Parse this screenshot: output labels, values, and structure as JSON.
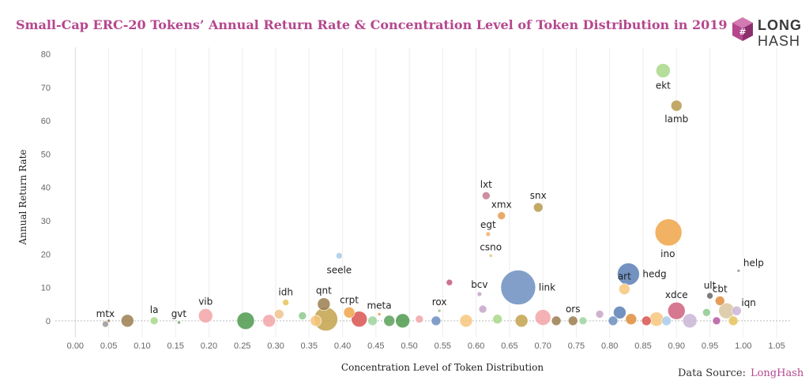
{
  "title": "Small-Cap ERC-20 Tokens’ Annual Return Rate & Concentration Level of Token Distribution in 2019",
  "logo": {
    "line1": "LONG",
    "line2": "HASH",
    "brand_color": "#b5478e"
  },
  "source": {
    "prefix": "Data Source:",
    "name": "LongHash"
  },
  "chart_data": {
    "type": "scatter",
    "title": "Small-Cap ERC-20 Tokens’ Annual Return Rate & Concentration Level of Token Distribution in 2019",
    "xlabel": "Concentration Level of Token Distribution",
    "ylabel": "Annual Return Rate",
    "xlim": [
      -0.03,
      1.07
    ],
    "ylim": [
      -5,
      82
    ],
    "xticks": [
      "0.00",
      "0.05",
      "0.10",
      "0.15",
      "0.20",
      "0.25",
      "0.30",
      "0.35",
      "0.40",
      "0.45",
      "0.50",
      "0.55",
      "0.60",
      "0.65",
      "0.70",
      "0.75",
      "0.80",
      "0.85",
      "0.90",
      "0.95",
      "1.00",
      "1.05"
    ],
    "yticks": [
      "0",
      "10",
      "20",
      "30",
      "40",
      "50",
      "60",
      "70",
      "80"
    ],
    "grid": "vertical gridlines, dashed zero line",
    "labeled_points": [
      {
        "label": "ekt",
        "x": 0.88,
        "y": 75.0,
        "r": 9,
        "color": "#a8d88a"
      },
      {
        "label": "lamb",
        "x": 0.9,
        "y": 64.5,
        "r": 7,
        "color": "#b89a4e"
      },
      {
        "label": "ino",
        "x": 0.888,
        "y": 26.5,
        "r": 17,
        "color": "#f0a548"
      },
      {
        "label": "lxt",
        "x": 0.615,
        "y": 37.5,
        "r": 5,
        "color": "#c47a8f"
      },
      {
        "label": "xmx",
        "x": 0.638,
        "y": 31.5,
        "r": 5,
        "color": "#e59b4f"
      },
      {
        "label": "snx",
        "x": 0.693,
        "y": 34.0,
        "r": 6,
        "color": "#b89a4e"
      },
      {
        "label": "egt",
        "x": 0.618,
        "y": 26.0,
        "r": 3,
        "color": "#f2b36b"
      },
      {
        "label": "csno",
        "x": 0.622,
        "y": 19.5,
        "r": 2,
        "color": "#e5c07b"
      },
      {
        "label": "seele",
        "x": 0.395,
        "y": 19.5,
        "r": 4,
        "color": "#a9cbe8"
      },
      {
        "label": "link",
        "x": 0.663,
        "y": 10.0,
        "r": 22,
        "color": "#6c8ebf"
      },
      {
        "label": "hedg",
        "x": 0.828,
        "y": 14.0,
        "r": 14,
        "color": "#5a7fb5"
      },
      {
        "label": "art",
        "x": 0.822,
        "y": 9.5,
        "r": 7,
        "color": "#f7c77e"
      },
      {
        "label": "bcv",
        "x": 0.605,
        "y": 8.0,
        "r": 3,
        "color": "#c7a5c9"
      },
      {
        "label": "help",
        "x": 0.993,
        "y": 15.0,
        "r": 2,
        "color": "#999999"
      },
      {
        "label": "ult",
        "x": 0.95,
        "y": 7.5,
        "r": 4,
        "color": "#666666"
      },
      {
        "label": "cbt",
        "x": 0.965,
        "y": 6.0,
        "r": 6,
        "color": "#e08d3c"
      },
      {
        "label": "xdce",
        "x": 0.9,
        "y": 3.0,
        "r": 11,
        "color": "#d0607e"
      },
      {
        "label": "iqn",
        "x": 0.99,
        "y": 3.0,
        "r": 6,
        "color": "#c9b6d6"
      },
      {
        "label": "qnt",
        "x": 0.372,
        "y": 5.0,
        "r": 8,
        "color": "#9b7e4f"
      },
      {
        "label": "crpt",
        "x": 0.41,
        "y": 2.5,
        "r": 7,
        "color": "#f0a548"
      },
      {
        "label": "idh",
        "x": 0.315,
        "y": 5.5,
        "r": 4,
        "color": "#e5c35a"
      },
      {
        "label": "meta",
        "x": 0.455,
        "y": 2.0,
        "r": 2,
        "color": "#e59b4f"
      },
      {
        "label": "rox",
        "x": 0.545,
        "y": 3.0,
        "r": 2,
        "color": "#a0c080"
      },
      {
        "label": "ors",
        "x": 0.745,
        "y": 0.0,
        "r": 6,
        "color": "#9b7e4f"
      },
      {
        "label": "vib",
        "x": 0.195,
        "y": 1.5,
        "r": 9,
        "color": "#f2a4a8"
      },
      {
        "label": "gvt",
        "x": 0.155,
        "y": -0.5,
        "r": 2,
        "color": "#6aa86a"
      },
      {
        "label": "la",
        "x": 0.118,
        "y": 0.0,
        "r": 5,
        "color": "#a8d88a"
      },
      {
        "label": "mtx",
        "x": 0.045,
        "y": -1.0,
        "r": 4,
        "color": "#999999"
      }
    ],
    "other_points": [
      {
        "x": 0.078,
        "y": 0.0,
        "r": 8,
        "color": "#9b7e4f"
      },
      {
        "x": 0.05,
        "y": 0.0,
        "r": 2,
        "color": "#9b7e4f"
      },
      {
        "x": 0.255,
        "y": 0.0,
        "r": 11,
        "color": "#4e9a4e"
      },
      {
        "x": 0.29,
        "y": 0.0,
        "r": 8,
        "color": "#f2a4a8"
      },
      {
        "x": 0.305,
        "y": 2.0,
        "r": 6,
        "color": "#f0c38c"
      },
      {
        "x": 0.34,
        "y": 1.5,
        "r": 5,
        "color": "#8dc98d"
      },
      {
        "x": 0.36,
        "y": 0.0,
        "r": 7,
        "color": "#f7c77e"
      },
      {
        "x": 0.375,
        "y": 0.5,
        "r": 15,
        "color": "#c2a24a"
      },
      {
        "x": 0.425,
        "y": 0.5,
        "r": 10,
        "color": "#d9534f"
      },
      {
        "x": 0.445,
        "y": 0.0,
        "r": 6,
        "color": "#9fd39f"
      },
      {
        "x": 0.47,
        "y": 0.0,
        "r": 7,
        "color": "#5aa05a"
      },
      {
        "x": 0.49,
        "y": 0.0,
        "r": 9,
        "color": "#4e9a4e"
      },
      {
        "x": 0.515,
        "y": 0.5,
        "r": 5,
        "color": "#f2a4a8"
      },
      {
        "x": 0.54,
        "y": 0.0,
        "r": 6,
        "color": "#6c8ebf"
      },
      {
        "x": 0.56,
        "y": 11.5,
        "r": 4,
        "color": "#c25b7a"
      },
      {
        "x": 0.585,
        "y": 0.0,
        "r": 8,
        "color": "#f7c77e"
      },
      {
        "x": 0.61,
        "y": 3.5,
        "r": 5,
        "color": "#c7a5c9"
      },
      {
        "x": 0.632,
        "y": 0.5,
        "r": 6,
        "color": "#a8d88a"
      },
      {
        "x": 0.668,
        "y": 0.0,
        "r": 8,
        "color": "#c2a24a"
      },
      {
        "x": 0.7,
        "y": 1.0,
        "r": 10,
        "color": "#f2a4a8"
      },
      {
        "x": 0.72,
        "y": 0.0,
        "r": 6,
        "color": "#9b7e4f"
      },
      {
        "x": 0.76,
        "y": 0.0,
        "r": 5,
        "color": "#9fd39f"
      },
      {
        "x": 0.785,
        "y": 2.0,
        "r": 5,
        "color": "#c7a5c9"
      },
      {
        "x": 0.805,
        "y": 0.0,
        "r": 6,
        "color": "#6c8ebf"
      },
      {
        "x": 0.815,
        "y": 2.5,
        "r": 8,
        "color": "#5a7fb5"
      },
      {
        "x": 0.832,
        "y": 0.5,
        "r": 7,
        "color": "#e08d3c"
      },
      {
        "x": 0.855,
        "y": 0.0,
        "r": 6,
        "color": "#d9534f"
      },
      {
        "x": 0.87,
        "y": 0.5,
        "r": 9,
        "color": "#f7c77e"
      },
      {
        "x": 0.885,
        "y": 0.0,
        "r": 6,
        "color": "#a9cbe8"
      },
      {
        "x": 0.92,
        "y": 0.0,
        "r": 9,
        "color": "#c9b6d6"
      },
      {
        "x": 0.945,
        "y": 2.5,
        "r": 5,
        "color": "#8dc98d"
      },
      {
        "x": 0.975,
        "y": 3.0,
        "r": 10,
        "color": "#d9c6a0"
      },
      {
        "x": 0.985,
        "y": 0.0,
        "r": 6,
        "color": "#e5c35a"
      },
      {
        "x": 0.96,
        "y": 0.0,
        "r": 5,
        "color": "#b55aa0"
      }
    ]
  }
}
